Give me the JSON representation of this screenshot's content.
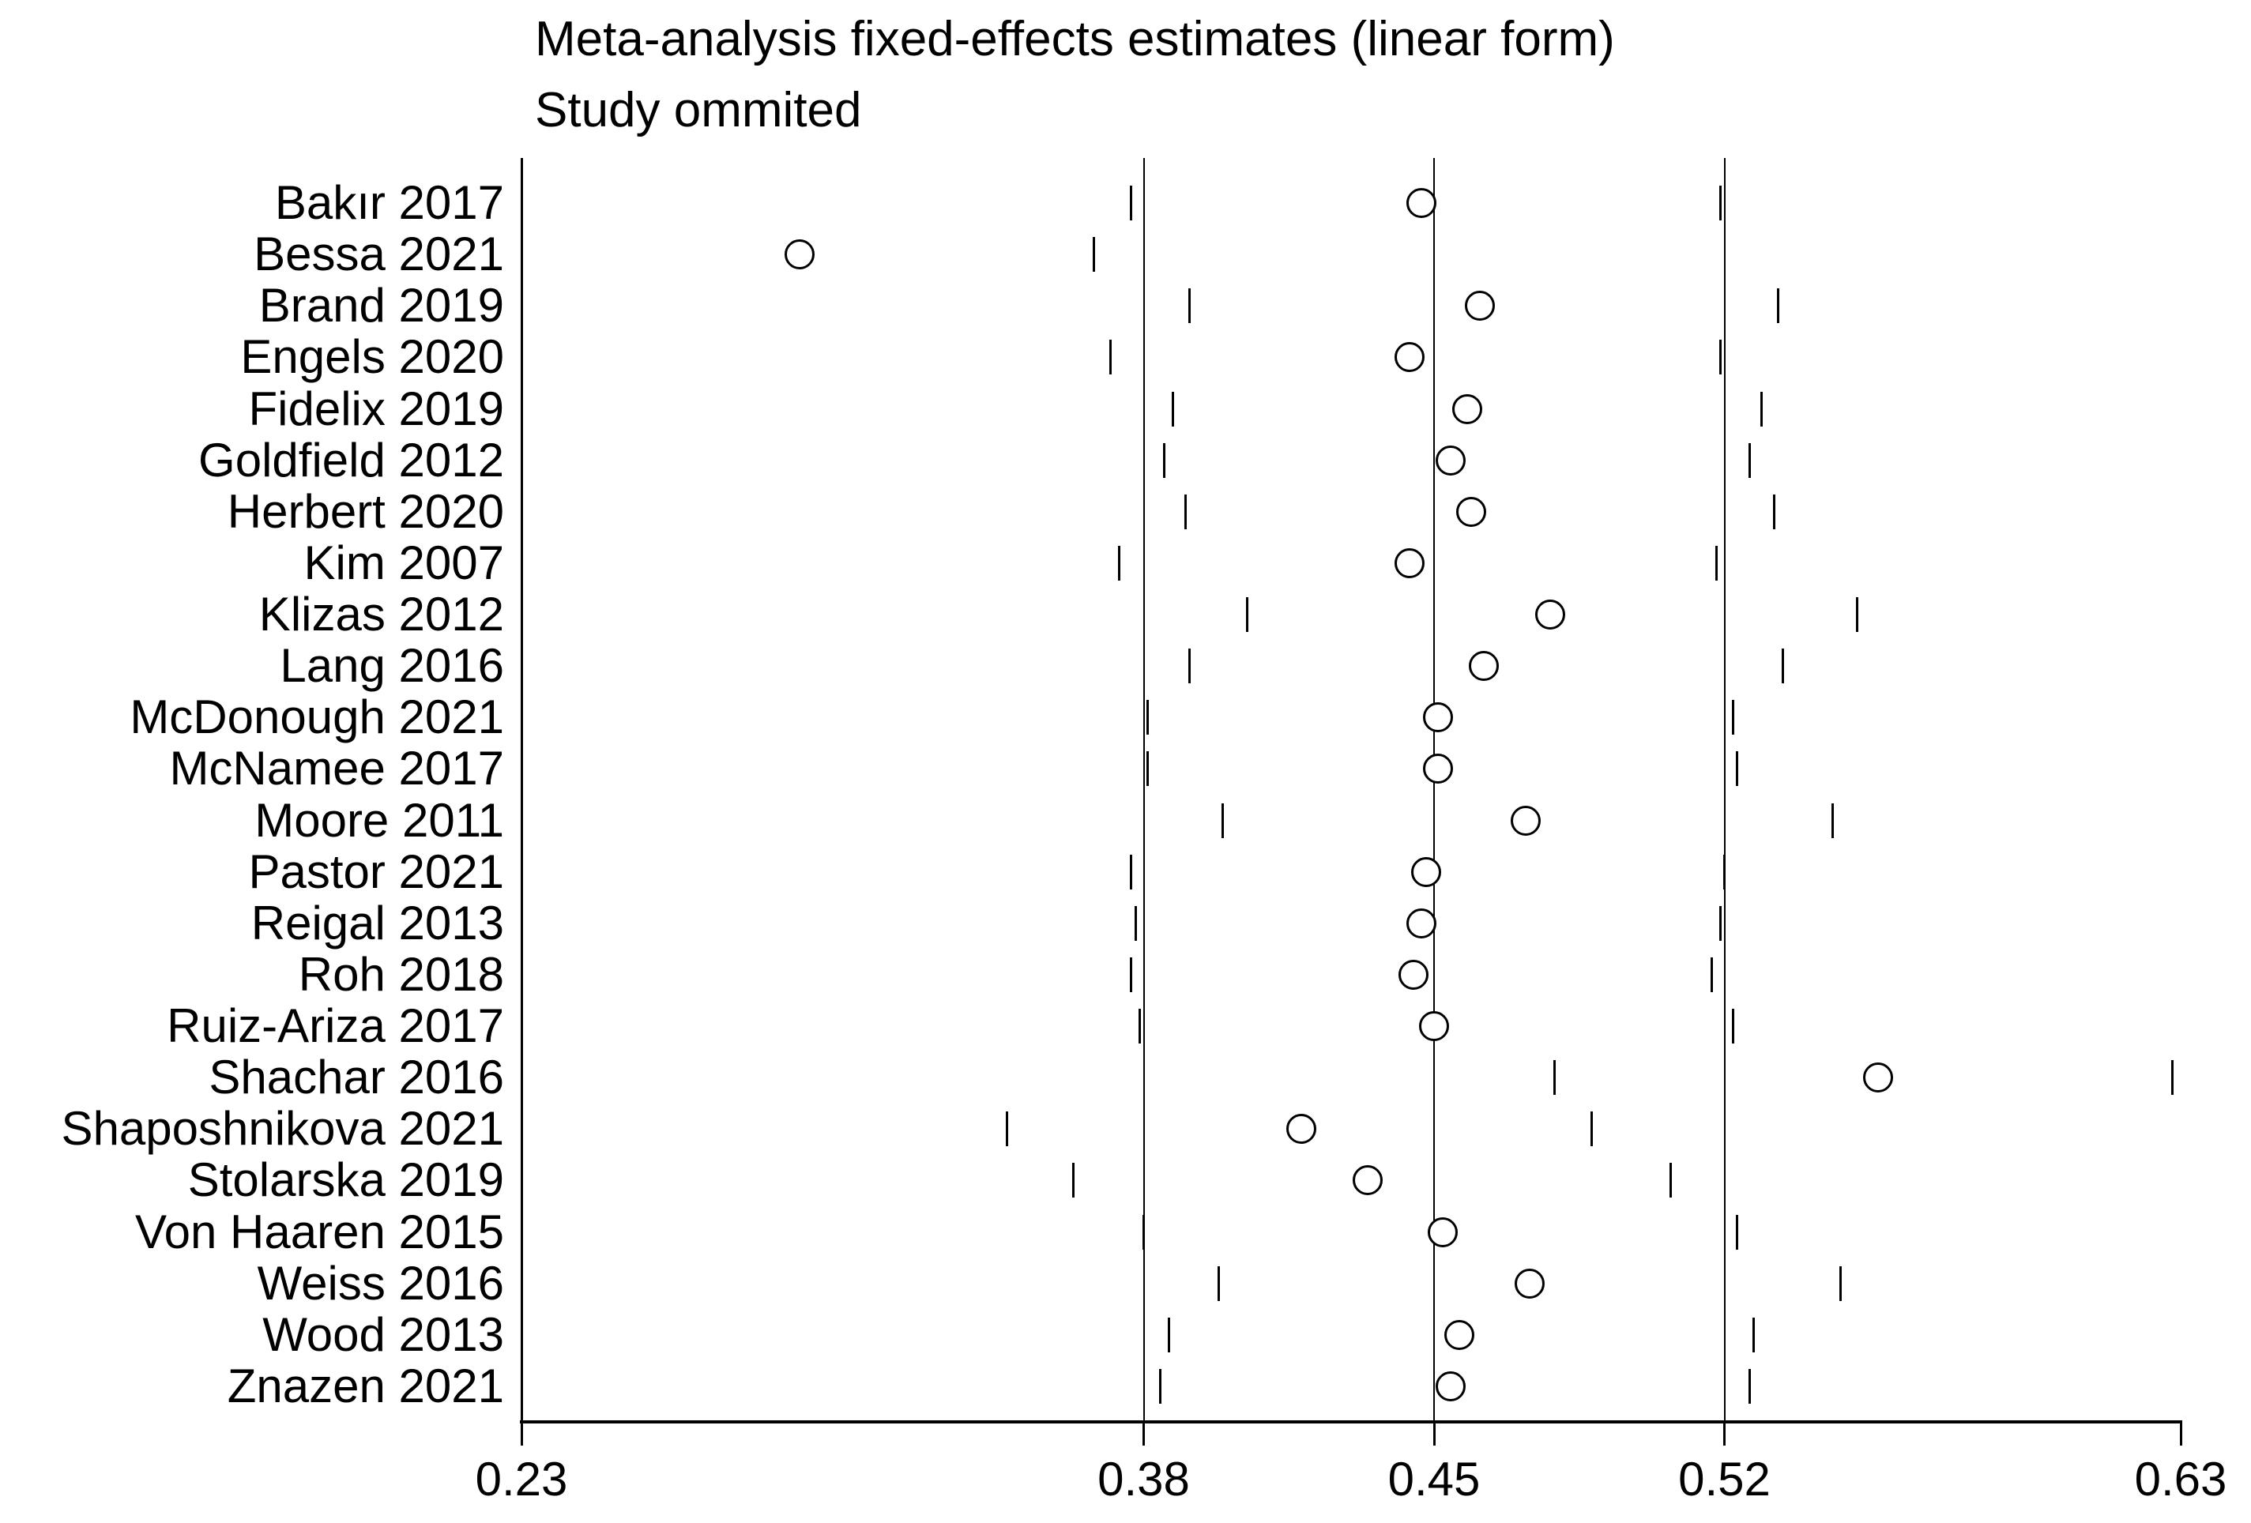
{
  "chart_data": {
    "type": "forest-leave-one-out",
    "title": "Meta-analysis fixed-effects estimates (linear form)",
    "subtitle": "Study ommited",
    "xlim": [
      0.23,
      0.63
    ],
    "x_ticks": [
      0.23,
      0.38,
      0.45,
      0.52,
      0.63
    ],
    "x_tick_labels": [
      "0.23",
      "0.38",
      "0.45",
      "0.52",
      "0.63"
    ],
    "reference_lines": [
      0.38,
      0.45,
      0.52
    ],
    "grid": false,
    "legend": "none",
    "colors": {
      "marker": "#000000",
      "line": "#000000",
      "background": "#ffffff"
    },
    "studies": [
      {
        "label": "Bakır 2017",
        "estimate": 0.447,
        "ci_low": 0.377,
        "ci_high": 0.519
      },
      {
        "label": "Bessa 2021",
        "estimate": 0.297,
        "ci_low": 0.23,
        "ci_high": 0.368
      },
      {
        "label": "Brand 2019",
        "estimate": 0.461,
        "ci_low": 0.391,
        "ci_high": 0.533
      },
      {
        "label": "Engels 2020",
        "estimate": 0.444,
        "ci_low": 0.372,
        "ci_high": 0.519
      },
      {
        "label": "Fidelix 2019",
        "estimate": 0.458,
        "ci_low": 0.387,
        "ci_high": 0.529
      },
      {
        "label": "Goldfield 2012",
        "estimate": 0.454,
        "ci_low": 0.385,
        "ci_high": 0.526
      },
      {
        "label": "Herbert 2020",
        "estimate": 0.459,
        "ci_low": 0.39,
        "ci_high": 0.532
      },
      {
        "label": "Kim 2007",
        "estimate": 0.444,
        "ci_low": 0.374,
        "ci_high": 0.518
      },
      {
        "label": "Klizas 2012",
        "estimate": 0.478,
        "ci_low": 0.405,
        "ci_high": 0.552
      },
      {
        "label": "Lang 2016",
        "estimate": 0.462,
        "ci_low": 0.391,
        "ci_high": 0.534
      },
      {
        "label": "McDonough 2021",
        "estimate": 0.451,
        "ci_low": 0.381,
        "ci_high": 0.522
      },
      {
        "label": "McNamee 2017",
        "estimate": 0.451,
        "ci_low": 0.381,
        "ci_high": 0.523
      },
      {
        "label": "Moore 2011",
        "estimate": 0.472,
        "ci_low": 0.399,
        "ci_high": 0.546
      },
      {
        "label": "Pastor 2021",
        "estimate": 0.448,
        "ci_low": 0.377,
        "ci_high": 0.52
      },
      {
        "label": "Reigal 2013",
        "estimate": 0.447,
        "ci_low": 0.378,
        "ci_high": 0.519
      },
      {
        "label": "Roh 2018",
        "estimate": 0.445,
        "ci_low": 0.377,
        "ci_high": 0.517
      },
      {
        "label": "Ruiz-Ariza 2017",
        "estimate": 0.45,
        "ci_low": 0.379,
        "ci_high": 0.522
      },
      {
        "label": "Shachar 2016",
        "estimate": 0.557,
        "ci_low": 0.479,
        "ci_high": 0.628
      },
      {
        "label": "Shaposhnikova 2021",
        "estimate": 0.418,
        "ci_low": 0.347,
        "ci_high": 0.488
      },
      {
        "label": "Stolarska 2019",
        "estimate": 0.434,
        "ci_low": 0.363,
        "ci_high": 0.507
      },
      {
        "label": "Von Haaren 2015",
        "estimate": 0.452,
        "ci_low": 0.38,
        "ci_high": 0.523
      },
      {
        "label": "Weiss 2016",
        "estimate": 0.473,
        "ci_low": 0.398,
        "ci_high": 0.548
      },
      {
        "label": "Wood 2013",
        "estimate": 0.456,
        "ci_low": 0.386,
        "ci_high": 0.527
      },
      {
        "label": "Znazen 2021",
        "estimate": 0.454,
        "ci_low": 0.384,
        "ci_high": 0.526
      }
    ]
  }
}
